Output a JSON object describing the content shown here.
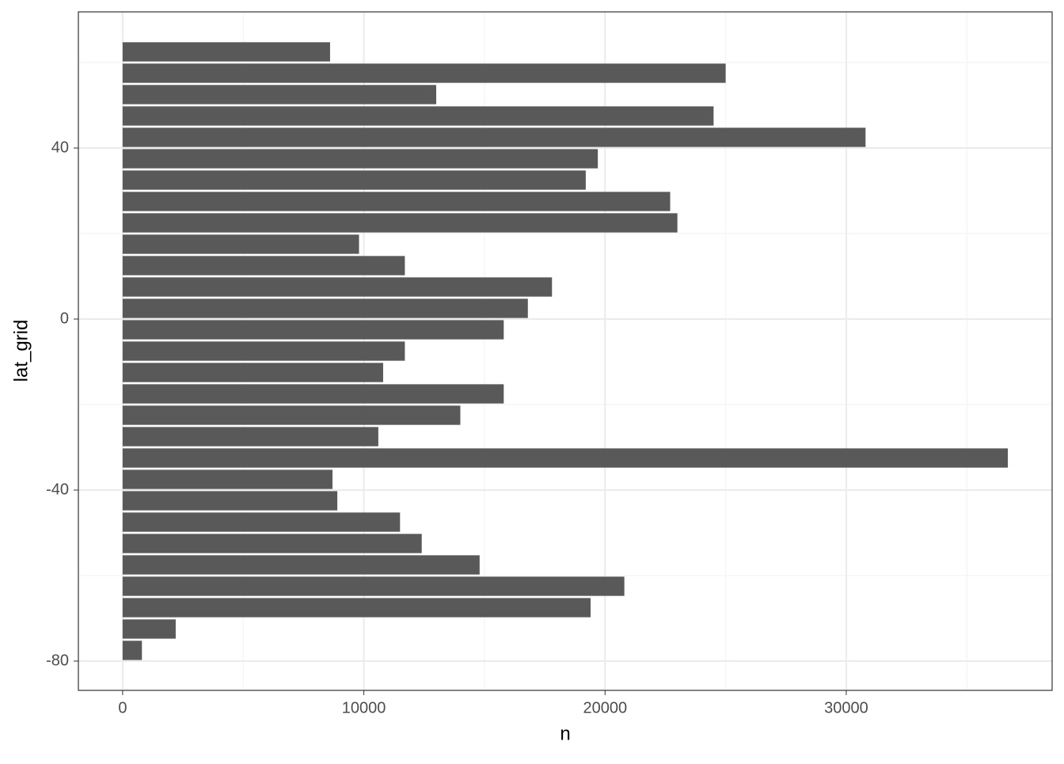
{
  "chart_data": {
    "type": "hbar",
    "xlabel": "n",
    "ylabel": "lat_grid",
    "categories": [
      -77.5,
      -72.5,
      -67.5,
      -62.5,
      -57.5,
      -52.5,
      -47.5,
      -42.5,
      -37.5,
      -32.5,
      -27.5,
      -22.5,
      -17.5,
      -12.5,
      -7.5,
      -2.5,
      2.5,
      7.5,
      12.5,
      17.5,
      22.5,
      27.5,
      32.5,
      37.5,
      42.5,
      47.5,
      52.5,
      57.5,
      62.5
    ],
    "values": [
      800,
      2200,
      19400,
      20800,
      14800,
      12400,
      11500,
      8900,
      8700,
      36700,
      10600,
      14000,
      15800,
      10800,
      11700,
      15800,
      16800,
      17800,
      11700,
      9800,
      23000,
      22700,
      19200,
      19700,
      30800,
      24500,
      13000,
      25000,
      8600
    ],
    "color": "#595959",
    "xlim": [
      -1835,
      38535
    ],
    "xticks": [
      0,
      10000,
      20000,
      30000
    ],
    "x_minor_ticks": [
      5000,
      15000,
      25000,
      35000
    ],
    "ylim": [
      -86.85,
      71.85
    ],
    "yticks": [
      -80,
      -40,
      0,
      40
    ],
    "y_minor_ticks": [
      -60,
      -20,
      20,
      60
    ],
    "grid": true
  }
}
